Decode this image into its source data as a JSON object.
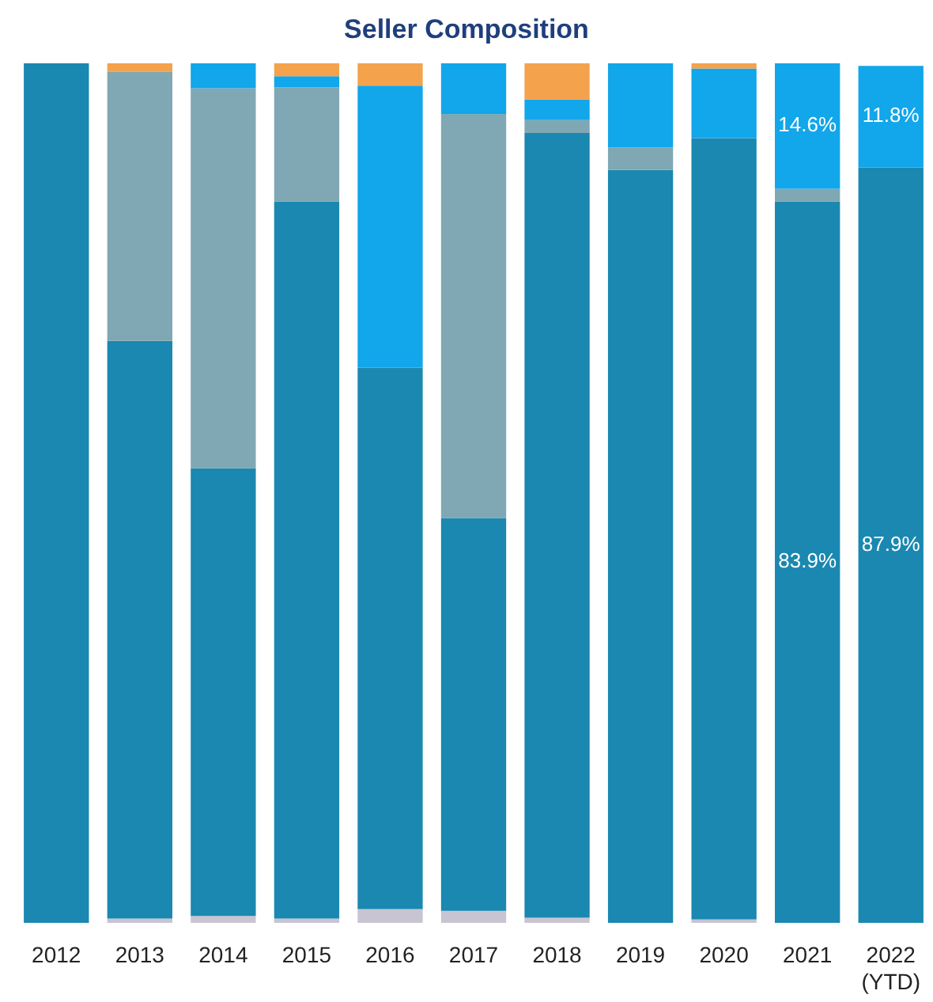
{
  "chart_data": {
    "type": "bar",
    "title": "Seller Composition",
    "stacked": true,
    "ylim": [
      0,
      100
    ],
    "tick_labels": "x",
    "categories": [
      "2012",
      "2013",
      "2014",
      "2015",
      "2016",
      "2017",
      "2018",
      "2019",
      "2020",
      "2021",
      "2022 (YTD)"
    ],
    "series": [
      {
        "color": "#c9c4d2",
        "values": [
          null,
          0.5,
          0.8,
          0.5,
          1.6,
          1.4,
          0.6,
          null,
          0.4,
          null,
          null
        ]
      },
      {
        "color": "#1a88b0",
        "values": [
          100,
          67.2,
          52.1,
          83.4,
          63,
          45.7,
          91.3,
          87.6,
          90.9,
          83.9,
          87.9
        ],
        "value_labels": [
          null,
          null,
          null,
          null,
          null,
          null,
          null,
          null,
          null,
          "83.9%",
          "87.9%"
        ]
      },
      {
        "color": "#80a7b4",
        "values": [
          null,
          31.3,
          44.2,
          13.3,
          null,
          47,
          1.5,
          2.6,
          null,
          1.5,
          null
        ]
      },
      {
        "color": "#12a6ea",
        "values": [
          null,
          null,
          2.9,
          1.3,
          32.8,
          5.9,
          2.4,
          9.8,
          8.1,
          14.6,
          11.8
        ],
        "value_labels": [
          null,
          null,
          null,
          null,
          null,
          null,
          null,
          null,
          null,
          "14.6%",
          "11.8%"
        ]
      },
      {
        "color": "#f4a24c",
        "values": [
          null,
          1,
          null,
          1.5,
          2.6,
          null,
          4.2,
          null,
          0.6,
          null,
          null
        ]
      }
    ]
  }
}
